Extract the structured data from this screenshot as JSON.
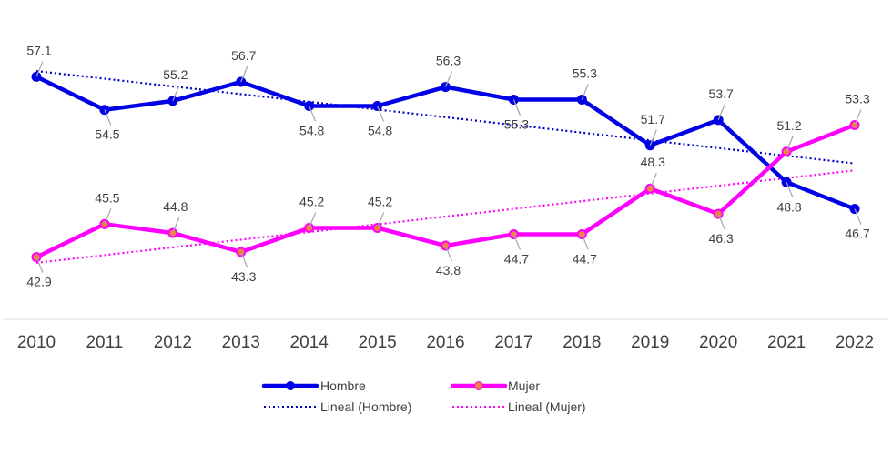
{
  "chart_data": {
    "type": "line",
    "title": "",
    "xlabel": "",
    "ylabel": "",
    "categories": [
      "2010",
      "2011",
      "2012",
      "2013",
      "2014",
      "2015",
      "2016",
      "2017",
      "2018",
      "2019",
      "2020",
      "2021",
      "2022"
    ],
    "ylim": [
      38,
      62
    ],
    "grid": false,
    "legend_position": "bottom",
    "series": [
      {
        "name": "Hombre",
        "color": "#0000E6",
        "marker_fill": "#0000E6",
        "values": [
          57.1,
          54.5,
          55.2,
          56.7,
          54.8,
          54.8,
          56.3,
          55.3,
          55.3,
          51.7,
          53.7,
          48.8,
          46.7
        ],
        "labels": [
          "57.1",
          "54.5",
          "55.2",
          "56.7",
          "54.8",
          "54.8",
          "56.3",
          "55.3",
          "55.3",
          "51.7",
          "53.7",
          "48.8",
          "46.7"
        ],
        "label_positions": [
          "above",
          "below",
          "above",
          "above",
          "below",
          "below",
          "above",
          "below",
          "above",
          "above",
          "above",
          "below",
          "below"
        ]
      },
      {
        "name": "Mujer",
        "color": "#FF00FF",
        "marker_fill": "#F08040",
        "values": [
          42.9,
          45.5,
          44.8,
          43.3,
          45.2,
          45.2,
          43.8,
          44.7,
          44.7,
          48.3,
          46.3,
          51.2,
          53.3
        ],
        "labels": [
          "42.9",
          "45.5",
          "44.8",
          "43.3",
          "45.2",
          "45.2",
          "43.8",
          "44.7",
          "44.7",
          "48.3",
          "46.3",
          "51.2",
          "53.3"
        ],
        "label_positions": [
          "below",
          "above",
          "above",
          "below",
          "above",
          "above",
          "below",
          "below",
          "below",
          "above",
          "below",
          "above",
          "above"
        ]
      }
    ],
    "trendlines": [
      {
        "name": "Lineal (Hombre)",
        "color": "#0000CC",
        "series": "Hombre"
      },
      {
        "name": "Lineal (Mujer)",
        "color": "#FF00FF",
        "series": "Mujer"
      }
    ],
    "legend": [
      {
        "label": "Hombre",
        "style": "line-marker",
        "color": "#0000E6"
      },
      {
        "label": "Mujer",
        "style": "line-marker",
        "color": "#FF00FF"
      },
      {
        "label": "Lineal (Hombre)",
        "style": "dotted",
        "color": "#0000CC"
      },
      {
        "label": "Lineal (Mujer)",
        "style": "dotted",
        "color": "#FF00FF"
      }
    ]
  }
}
